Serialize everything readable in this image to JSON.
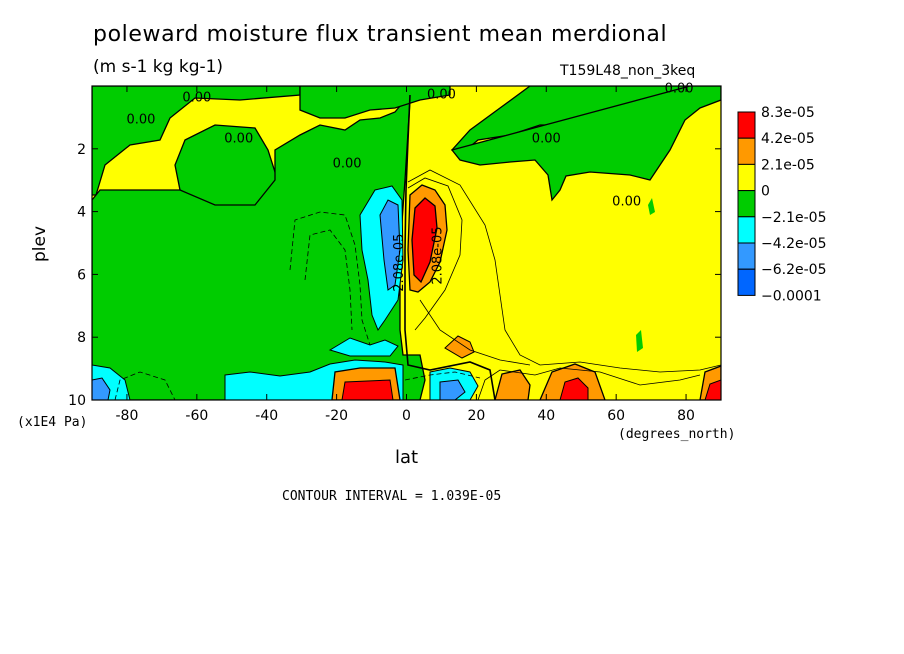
{
  "chart_data": {
    "type": "heatmap",
    "title": "poleward moisture flux transient mean merdional",
    "subtitle": "(m s-1 kg kg-1)",
    "run_label": "T159L48_non_3keq",
    "xlabel": "lat",
    "ylabel": "plev",
    "x_unit": "(degrees_north)",
    "y_unit": "(x1E4 Pa)",
    "xlim": [
      -90,
      90
    ],
    "ylim": [
      10,
      0
    ],
    "x_ticks": [
      -80,
      -60,
      -40,
      -20,
      0,
      20,
      40,
      60,
      80
    ],
    "y_ticks": [
      2,
      4,
      6,
      8,
      10
    ],
    "contour_interval": "CONTOUR INTERVAL = 1.039E-05",
    "legend": {
      "placement": "right",
      "levels": [
        "8.3e-05",
        "4.2e-05",
        "2.1e-05",
        "0",
        "−2.1e-05",
        "−4.2e-05",
        "−6.2e-05",
        "−0.0001"
      ],
      "colors": [
        "#ff0000",
        "#ff9900",
        "#ffff00",
        "#00cc00",
        "#00ffff",
        "#3399ff",
        "#0066ff"
      ]
    },
    "contour_labels": [
      {
        "text": "0.00",
        "lat": -60,
        "plev": 0.5
      },
      {
        "text": "0.00",
        "lat": -76,
        "plev": 1.2
      },
      {
        "text": "0.00",
        "lat": -48,
        "plev": 1.8
      },
      {
        "text": "0.00",
        "lat": -17,
        "plev": 2.6
      },
      {
        "text": "0.00",
        "lat": 10,
        "plev": 0.4
      },
      {
        "text": "0.00",
        "lat": 40,
        "plev": 1.8
      },
      {
        "text": "0.00",
        "lat": 63,
        "plev": 3.8
      },
      {
        "text": "0.00",
        "lat": 78,
        "plev": 0.2
      },
      {
        "text": "2.08e-05",
        "lat": 10,
        "plev": 5.4
      },
      {
        "text": "-2.08e-05",
        "lat": -1,
        "plev": 5.7
      }
    ]
  }
}
